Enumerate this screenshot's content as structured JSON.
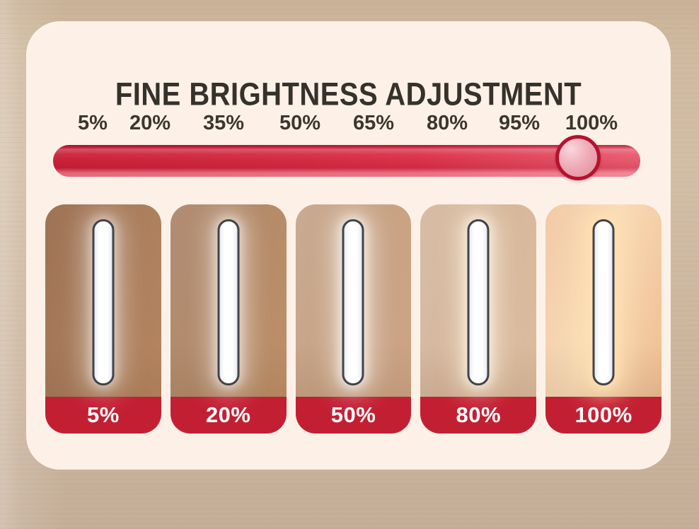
{
  "title": "FINE BRIGHTNESS ADJUSTMENT",
  "slider": {
    "tick_labels": [
      "5%",
      "20%",
      "35%",
      "50%",
      "65%",
      "80%",
      "95%",
      "100%"
    ],
    "value": "100%"
  },
  "panels": [
    {
      "label": "5%",
      "wall": [
        "#9e7355",
        "#a87c5c",
        "#b6855f"
      ],
      "glow": "rgba(255,255,255,0.40)"
    },
    {
      "label": "20%",
      "wall": [
        "#b18d74",
        "#b28a6a",
        "#bd8f66"
      ],
      "glow": "rgba(255,255,255,0.45)"
    },
    {
      "label": "50%",
      "wall": [
        "#c9ab92",
        "#c7a284",
        "#cda485"
      ],
      "glow": "rgba(255,255,255,0.55)"
    },
    {
      "label": "80%",
      "wall": [
        "#d7bda6",
        "#d6b79c",
        "#dcbc9e"
      ],
      "glow": "rgba(255,246,230,0.60)"
    },
    {
      "label": "100%",
      "wall": [
        "#f2c9a6",
        "#f9dcb8",
        "#efbe92"
      ],
      "glow": "rgba(255,224,178,0.95)"
    }
  ],
  "colors": {
    "card_bg": "#fdf1e7",
    "wood_base": "#ccb59d",
    "title_text": "#35312b",
    "tick_text": "#3c362e",
    "track_red_dark": "#c92138",
    "track_red_light": "#e85a70",
    "handle_ring": "#b5122e",
    "handle_fill": "#efaab6",
    "label_band": "#c31f33",
    "label_text": "#ffffff"
  }
}
